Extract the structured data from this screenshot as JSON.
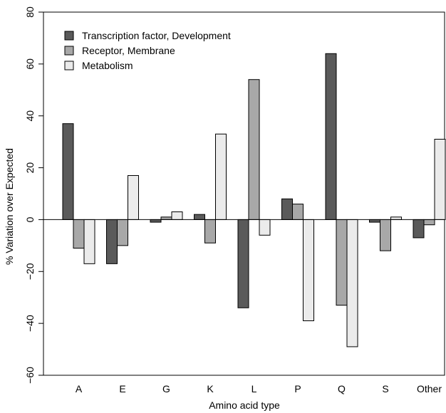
{
  "chart_data": {
    "type": "bar",
    "title": "",
    "xlabel": "Amino acid type",
    "ylabel": "% Variation over Expected",
    "ylim": [
      -60,
      80
    ],
    "yticks": [
      -60,
      -40,
      -20,
      0,
      20,
      40,
      60,
      80
    ],
    "yticks_labels": [
      "−60",
      "−40",
      "−20",
      "0",
      "20",
      "40",
      "60",
      "80"
    ],
    "categories": [
      "A",
      "E",
      "G",
      "K",
      "L",
      "P",
      "Q",
      "S",
      "Other"
    ],
    "grid": false,
    "legend_position": "top-left",
    "series": [
      {
        "name": "Transcription factor, Development",
        "color": "#5a5a5a",
        "values": [
          37,
          -17,
          -1,
          2,
          -34,
          8,
          64,
          -1,
          -7
        ]
      },
      {
        "name": "Receptor, Membrane",
        "color": "#a8a8a8",
        "values": [
          -11,
          -10,
          1,
          -9,
          54,
          6,
          -33,
          -12,
          -2
        ]
      },
      {
        "name": "Metabolism",
        "color": "#ebebeb",
        "values": [
          -17,
          17,
          3,
          33,
          -6,
          -39,
          -49,
          1,
          31
        ]
      }
    ]
  }
}
